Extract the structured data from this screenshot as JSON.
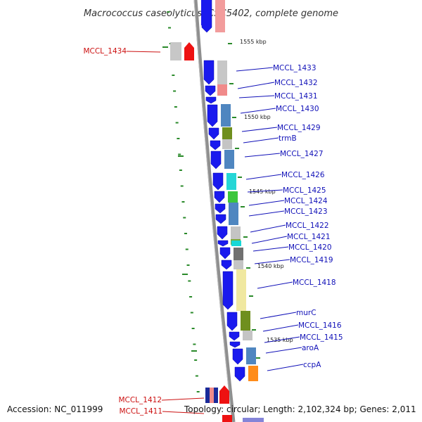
{
  "title": "Macrococcus caseolyticus JCSC5402, complete genome",
  "colors": {
    "forward_strand": "#1a1aee",
    "reverse_strand": "#ee1111",
    "backbone": "#8f8f8f",
    "tick": "#2a8a2a",
    "forward_label": "#1010b8",
    "reverse_label": "#cc1111"
  },
  "scale_labels": [
    "1555 kbp",
    "1550 kbp",
    "1545 kbp",
    "1540 kbp",
    "1535 kbp"
  ],
  "forward_labels": [
    "MCCL_1433",
    "MCCL_1432",
    "MCCL_1431",
    "MCCL_1430",
    "MCCL_1429",
    "trmB",
    "MCCL_1427",
    "MCCL_1426",
    "MCCL_1425",
    "MCCL_1424",
    "MCCL_1423",
    "MCCL_1422",
    "MCCL_1421",
    "MCCL_1420",
    "MCCL_1419",
    "MCCL_1418",
    "murC",
    "MCCL_1416",
    "MCCL_1415",
    "aroA",
    "ccpA"
  ],
  "reverse_labels": [
    "MCCL_1434",
    "MCCL_1412",
    "MCCL_1411"
  ],
  "footer": {
    "accession": "Accession: NC_011999",
    "summary": "Topology: circular; Length: 2,102,324 bp; Genes: 2,011"
  }
}
